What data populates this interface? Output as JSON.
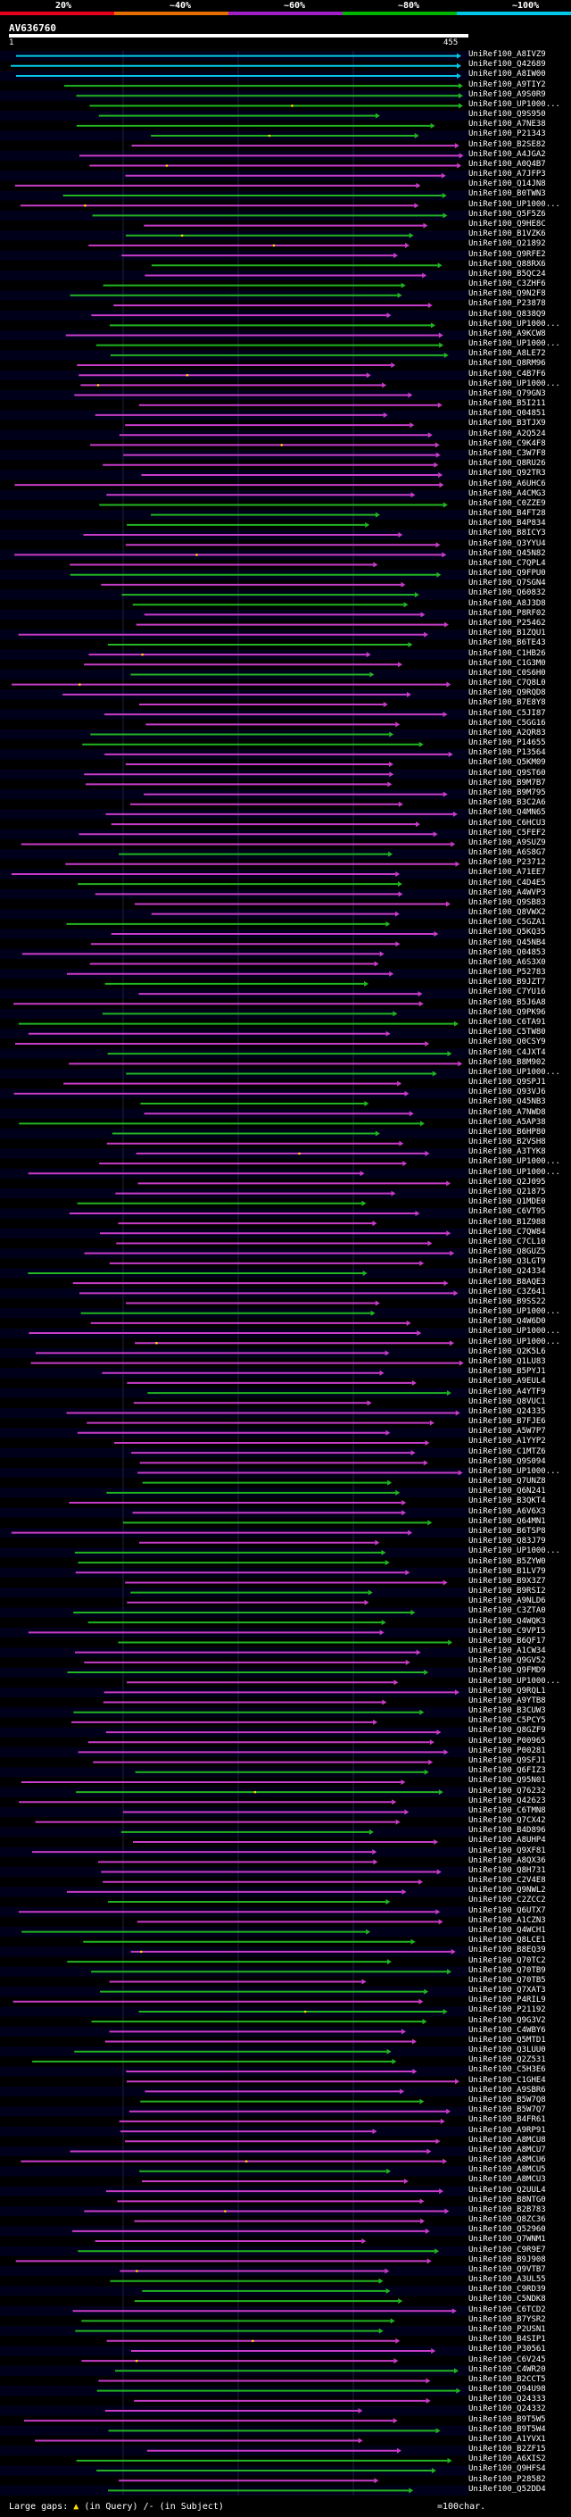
{
  "scale": {
    "labels": [
      "20%",
      "~40%",
      "~60%",
      "~80%",
      "~100%"
    ],
    "colors": [
      "#e6001c",
      "#e66e00",
      "#a020c8",
      "#00b400",
      "#00c8e6"
    ]
  },
  "query": {
    "id": "AV636760",
    "start": "1",
    "end": "455"
  },
  "legend": {
    "large_gaps": "Large gaps:",
    "q_symbol": "▲",
    "in_query": "(in Query)",
    "s_symbol": "/-",
    "in_subject": "(in Subject)",
    "scale_text": "=100char."
  },
  "hit_names": [
    "UniRef100_A8IVZ9",
    "UniRef100_Q42689",
    "UniRef100_A8IW00",
    "UniRef100_A9TIY2",
    "UniRef100_A9S0R9",
    "UniRef100_UP1000...",
    "UniRef100_Q9S950",
    "UniRef100_A7NE38",
    "UniRef100_P21343",
    "UniRef100_B2SE82",
    "UniRef100_A4JGA2",
    "UniRef100_A0Q4B7",
    "UniRef100_A7JFP3",
    "UniRef100_Q14JN8",
    "UniRef100_B0TWN3",
    "UniRef100_UP1000...",
    "UniRef100_Q5F5Z6",
    "UniRef100_Q9HE8C",
    "UniRef100_B1VZK6",
    "UniRef100_Q21892",
    "UniRef100_Q9RFE2",
    "UniRef100_Q88RX6",
    "UniRef100_B5QC24",
    "UniRef100_C3ZHF6",
    "UniRef100_Q9N2F8",
    "UniRef100_P23878",
    "UniRef100_Q838Q9",
    "UniRef100_UP1000...",
    "UniRef100_A9KCW8",
    "UniRef100_UP1000...",
    "UniRef100_A8LE72",
    "UniRef100_Q8RM96",
    "UniRef100_C4B7F6",
    "UniRef100_UP1000...",
    "UniRef100_Q79GN3",
    "UniRef100_B5I211",
    "UniRef100_Q04851",
    "UniRef100_B3TJX9",
    "UniRef100_A2Q524",
    "UniRef100_C9K4F8",
    "UniRef100_C3W7F8",
    "UniRef100_Q8RU26",
    "UniRef100_Q92TR3",
    "UniRef100_A6UHC6",
    "UniRef100_A4CMG3",
    "UniRef100_C0ZZE9",
    "UniRef100_B4FT28",
    "UniRef100_B4P834",
    "UniRef100_B8ICY3",
    "UniRef100_Q3YYU4",
    "UniRef100_Q45N82",
    "UniRef100_C7QPL4",
    "UniRef100_Q9FPU0",
    "UniRef100_Q7SGN4",
    "UniRef100_Q60832",
    "UniRef100_A8J3D8",
    "UniRef100_P8RF02",
    "UniRef100_P25462",
    "UniRef100_B1ZQU1",
    "UniRef100_B6TE43",
    "UniRef100_C1HB26",
    "UniRef100_C1G3M0",
    "UniRef100_C0S6H0",
    "UniRef100_C7Q8L0",
    "UniRef100_Q9RQD8",
    "UniRef100_B7E8Y8",
    "UniRef100_C5JI87",
    "UniRef100_C5GG16",
    "UniRef100_A2QR83",
    "UniRef100_P14655",
    "UniRef100_P13564",
    "UniRef100_Q5KM09",
    "UniRef100_Q9ST60",
    "UniRef100_B9M7B7",
    "UniRef100_B9M795",
    "UniRef100_B3C2A6",
    "UniRef100_Q4MN65",
    "UniRef100_C6HCU3",
    "UniRef100_C5FEF2",
    "UniRef100_A9SUZ9",
    "UniRef100_A6S8G7",
    "UniRef100_P23712",
    "UniRef100_A71EE7",
    "UniRef100_C4D4E5",
    "UniRef100_A4WVP3",
    "UniRef100_Q9SB83",
    "UniRef100_Q8VWX2",
    "UniRef100_C5GZA1",
    "UniRef100_Q5KQ35",
    "UniRef100_Q45NB4",
    "UniRef100_Q04853",
    "UniRef100_A6S3X0",
    "UniRef100_P52783",
    "UniRef100_B9JZT7",
    "UniRef100_C7YU16",
    "UniRef100_B5J6A8",
    "UniRef100_Q9PK96",
    "UniRef100_C6TA91",
    "UniRef100_C5TW80",
    "UniRef100_Q0CSY9",
    "UniRef100_C4JXT4",
    "UniRef100_B8M902",
    "UniRef100_UP1000...",
    "UniRef100_Q9SPJ1",
    "UniRef100_Q93VJ6",
    "UniRef100_Q45NB3",
    "UniRef100_A7NWD8",
    "UniRef100_A5AP38",
    "UniRef100_B6HP80",
    "UniRef100_B2VSH8",
    "UniRef100_A3TYK8",
    "UniRef100_UP1000...",
    "UniRef100_UP1000...",
    "UniRef100_Q2J095",
    "UniRef100_Q21875",
    "UniRef100_Q1MDE0",
    "UniRef100_C6VT95",
    "UniRef100_B1Z988",
    "UniRef100_C7QW84",
    "UniRef100_C7CL10",
    "UniRef100_Q8GUZ5",
    "UniRef100_Q3LGT9",
    "UniRef100_Q24334",
    "UniRef100_B8AQE3",
    "UniRef100_C3Z641",
    "UniRef100_B9SS22",
    "UniRef100_UP1000...",
    "UniRef100_Q4W6D0",
    "UniRef100_UP1000...",
    "UniRef100_UP1000...",
    "UniRef100_Q2K5L6",
    "UniRef100_Q1LU83",
    "UniRef100_B5PYJ1",
    "UniRef100_A9EUL4",
    "UniRef100_A4YTF9",
    "UniRef100_Q8VUC1",
    "UniRef100_Q24335",
    "UniRef100_B7FJE6",
    "UniRef100_A5W7P7",
    "UniRef100_A1YYP2",
    "UniRef100_C1MTZ6",
    "UniRef100_Q9S094",
    "UniRef100_UP1000...",
    "UniRef100_Q7UNZ8",
    "UniRef100_Q6N241",
    "UniRef100_B3QKT4",
    "UniRef100_A6V6X3",
    "UniRef100_Q64MN1",
    "UniRef100_B6TSP8",
    "UniRef100_Q83J79",
    "UniRef100_UP1000...",
    "UniRef100_B5ZYW0",
    "UniRef100_B1LV79",
    "UniRef100_B9X3Z7",
    "UniRef100_B9RSI2",
    "UniRef100_A9NLD6",
    "UniRef100_C3ZTA0",
    "UniRef100_Q4WQK3",
    "UniRef100_C9VPI5",
    "UniRef100_B6QF17",
    "UniRef100_A1CW34",
    "UniRef100_Q9GV52",
    "UniRef100_Q9FMD9",
    "UniRef100_UP1000...",
    "UniRef100_Q9RQL1",
    "UniRef100_A9YTB8",
    "UniRef100_B3CUW3",
    "UniRef100_C5PCY5",
    "UniRef100_Q8GZF9",
    "UniRef100_P00965",
    "UniRef100_P00281",
    "UniRef100_Q9SFJ1",
    "UniRef100_Q6FIZ3",
    "UniRef100_Q95N01",
    "UniRef100_Q76232",
    "UniRef100_Q42623",
    "UniRef100_C6TMN8",
    "UniRef100_Q7CX42",
    "UniRef100_B4D896",
    "UniRef100_A8UHP4",
    "UniRef100_Q9XF81",
    "UniRef100_A8QX36",
    "UniRef100_Q8H731",
    "UniRef100_C2V4E8",
    "UniRef100_Q9NWL2",
    "UniRef100_C2ZCC2",
    "UniRef100_Q6UTX7",
    "UniRef100_A1CZN3",
    "UniRef100_Q4WCH1",
    "UniRef100_Q8LCE1",
    "UniRef100_B8EQ39",
    "UniRef100_Q70TC2",
    "UniRef100_Q70TB9",
    "UniRef100_Q70TB5",
    "UniRef100_Q7XAT3",
    "UniRef100_P4RIL9",
    "UniRef100_P21192",
    "UniRef100_Q9G3V2",
    "UniRef100_C4WBY6",
    "UniRef100_Q5MTD1",
    "UniRef100_Q3LUU0",
    "UniRef100_Q2Z531",
    "UniRef100_C5H3E6",
    "UniRef100_C1GHE4",
    "UniRef100_A9SBR6",
    "UniRef100_B5W7Q8",
    "UniRef100_B5W7Q7",
    "UniRef100_B4FR61",
    "UniRef100_A9RP91",
    "UniRef100_A8MCU8",
    "UniRef100_A8MCU7",
    "UniRef100_A8MCU6",
    "UniRef100_A8MCU5",
    "UniRef100_A8MCU3",
    "UniRef100_Q2UUL4",
    "UniRef100_B8NTG0",
    "UniRef100_B2B783",
    "UniRef100_Q8ZC36",
    "UniRef100_Q52960",
    "UniRef100_Q7WNM1",
    "UniRef100_C9R9E7",
    "UniRef100_B9J908",
    "UniRef100_Q9VTB7",
    "UniRef100_A3UL55",
    "UniRef100_C9RD39",
    "UniRef100_C5NDK8",
    "UniRef100_C6TCD2",
    "UniRef100_B7YSR2",
    "UniRef100_P2USN1",
    "UniRef100_B4SIP1",
    "UniRef100_P30561",
    "UniRef100_C6V245",
    "UniRef100_C4WR20",
    "UniRef100_B2CCT5",
    "UniRef100_Q94U98",
    "UniRef100_Q24333",
    "UniRef100_Q24332",
    "UniRef100_B9T5W5",
    "UniRef100_B9T5W4",
    "UniRef100_A1YVX1",
    "UniRef100_B2ZF15",
    "UniRef100_A6XIS2",
    "UniRef100_Q9HFS4",
    "UniRef100_P28582",
    "UniRef100_Q52DD4"
  ]
}
